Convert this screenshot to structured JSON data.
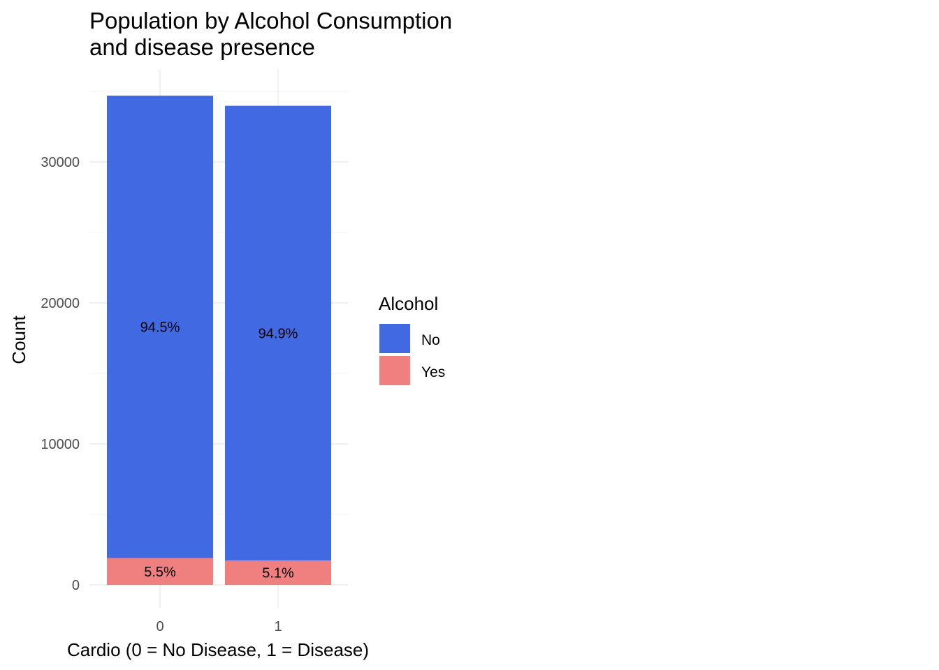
{
  "chart_data": {
    "type": "bar",
    "stacked": true,
    "title": "Population by Alcohol Consumption",
    "subtitle": "and disease presence",
    "xlabel": "Cardio (0 = No Disease, 1 = Disease)",
    "ylabel": "Count",
    "categories": [
      "0",
      "1"
    ],
    "ylim": [
      0,
      36000
    ],
    "yticks": [
      0,
      10000,
      20000,
      30000
    ],
    "grid": true,
    "legend": {
      "title": "Alcohol",
      "position": "right",
      "entries": [
        "No",
        "Yes"
      ]
    },
    "series": [
      {
        "name": "Yes",
        "color": "#F08080",
        "values": [
          1900,
          1730
        ],
        "labels": [
          "5.5%",
          "5.1%"
        ]
      },
      {
        "name": "No",
        "color": "#4169E1",
        "values": [
          32800,
          32250
        ],
        "labels": [
          "94.5%",
          "94.9%"
        ]
      }
    ]
  }
}
